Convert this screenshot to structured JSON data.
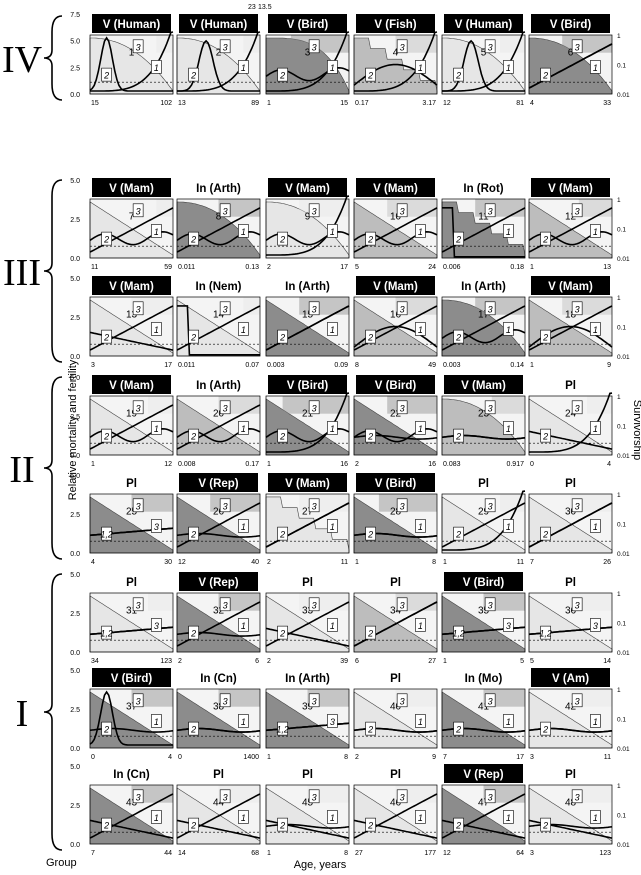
{
  "figure": {
    "group_label": "Group",
    "x_axis_label": "Age, years",
    "y_left_label": "Relative mortality and fertility",
    "y_right_label": "Survivorship",
    "left_ticks": [
      "0.0",
      "2.5",
      "5.0",
      "7.5"
    ],
    "right_ticks": [
      "1",
      "0.1",
      "0.01"
    ],
    "groups": [
      {
        "label": "IV",
        "rows": [
          0
        ]
      },
      {
        "label": "III",
        "rows": [
          1,
          2
        ]
      },
      {
        "label": "II",
        "rows": [
          3,
          4
        ]
      },
      {
        "label": "I",
        "rows": [
          5,
          6,
          7
        ]
      }
    ],
    "top_annotations": [
      "23",
      "13.5"
    ]
  },
  "chart_data": [
    {
      "type": "line",
      "panel": 1,
      "title": "V (Human)",
      "x_range": [
        "15",
        "102"
      ],
      "bg": "#e6e6e6",
      "mort": "late",
      "fert": "peak-early",
      "surv": "convex",
      "sel": 0.2
    },
    {
      "type": "line",
      "panel": 2,
      "title": "V (Human)",
      "x_range": [
        "13",
        "89"
      ],
      "bg": "#e6e6e6",
      "mort": "late",
      "fert": "peak-mid",
      "surv": "convex",
      "sel": 0.2
    },
    {
      "type": "line",
      "panel": 3,
      "title": "V (Bird)",
      "x_range": [
        "1",
        "15"
      ],
      "bg": "#8c8c8c",
      "mort": "late",
      "fert": "wavy",
      "surv": "convex-late",
      "sel": 0.7
    },
    {
      "type": "line",
      "panel": 4,
      "title": "V (Fish)",
      "x_range": [
        "0.17",
        "3.17"
      ],
      "bg": "#bdbdbd",
      "mort": "late",
      "fert": "rise-fall",
      "surv": "step",
      "sel": 0.5
    },
    {
      "type": "line",
      "panel": 5,
      "title": "V (Human)",
      "x_range": [
        "12",
        "81"
      ],
      "bg": "#e6e6e6",
      "mort": "late",
      "fert": "peak-mid",
      "surv": "convex",
      "sel": 0.3
    },
    {
      "type": "line",
      "panel": 6,
      "title": "V (Bird)",
      "x_range": [
        "4",
        "33"
      ],
      "bg": "#8c8c8c",
      "mort": "rise",
      "fert": "rise",
      "surv": "convex",
      "sel": 0.6
    },
    {
      "type": "line",
      "panel": 7,
      "title": "V (Mam)",
      "x_range": [
        "11",
        "59"
      ],
      "bg": "#e6e6e6",
      "mort": "rise",
      "fert": "wavy",
      "surv": "diagonal",
      "sel": 0.2
    },
    {
      "type": "line",
      "panel": 8,
      "title": "In (Arth)",
      "x_range": [
        "0.011",
        "0.13"
      ],
      "bg": "#8c8c8c",
      "mort": "rise",
      "fert": "wavy",
      "surv": "convex",
      "sel": 0.5
    },
    {
      "type": "line",
      "panel": 9,
      "title": "V (Mam)",
      "x_range": [
        "2",
        "17"
      ],
      "bg": "#e6e6e6",
      "mort": "late",
      "fert": "wavy",
      "surv": "convex",
      "sel": 0.6
    },
    {
      "type": "line",
      "panel": 10,
      "title": "V (Mam)",
      "x_range": [
        "5",
        "24"
      ],
      "bg": "#bdbdbd",
      "mort": "rise",
      "fert": "wavy",
      "surv": "diagonal",
      "sel": 0.6
    },
    {
      "type": "line",
      "panel": 11,
      "title": "In (Rot)",
      "x_range": [
        "0.006",
        "0.18"
      ],
      "bg": "#8c8c8c",
      "mort": "rise",
      "fert": "drop",
      "surv": "step",
      "sel": 0.6
    },
    {
      "type": "line",
      "panel": 12,
      "title": "V (Mam)",
      "x_range": [
        "1",
        "13"
      ],
      "bg": "#bdbdbd",
      "mort": "rise",
      "fert": "wavy",
      "surv": "diagonal",
      "sel": 0.4
    },
    {
      "type": "line",
      "panel": 13,
      "title": "V (Mam)",
      "x_range": [
        "3",
        "17"
      ],
      "bg": "#e6e6e6",
      "mort": "rise",
      "fert": "fall",
      "surv": "diagonal",
      "sel": 0.5
    },
    {
      "type": "line",
      "panel": 14,
      "title": "In (Nem)",
      "x_range": [
        "0.011",
        "0.07"
      ],
      "bg": "#e6e6e6",
      "mort": "rise",
      "fert": "drop",
      "surv": "diagonal",
      "sel": 0.2
    },
    {
      "type": "line",
      "panel": 15,
      "title": "In (Arth)",
      "x_range": [
        "0.003",
        "0.09"
      ],
      "bg": "#8c8c8c",
      "mort": "rise",
      "fert": "rise",
      "surv": "diagonal",
      "sel": 0.6
    },
    {
      "type": "line",
      "panel": 16,
      "title": "V (Mam)",
      "x_range": [
        "8",
        "49"
      ],
      "bg": "#bdbdbd",
      "mort": "rise",
      "fert": "rise-fall",
      "surv": "diagonal",
      "sel": 0.5
    },
    {
      "type": "line",
      "panel": 17,
      "title": "In (Arth)",
      "x_range": [
        "0.003",
        "0.14"
      ],
      "bg": "#8c8c8c",
      "mort": "rise",
      "fert": "wavy",
      "surv": "convex",
      "sel": 0.6
    },
    {
      "type": "line",
      "panel": 18,
      "title": "V (Mam)",
      "x_range": [
        "1",
        "9"
      ],
      "bg": "#bdbdbd",
      "mort": "rise",
      "fert": "rise-fall",
      "surv": "diagonal",
      "sel": 0.6
    },
    {
      "type": "line",
      "panel": 19,
      "title": "V (Mam)",
      "x_range": [
        "1",
        "12"
      ],
      "bg": "#e6e6e6",
      "mort": "rise",
      "fert": "wavy",
      "surv": "diagonal",
      "sel": 0.3
    },
    {
      "type": "line",
      "panel": 20,
      "title": "In (Arth)",
      "x_range": [
        "0.008",
        "0.17"
      ],
      "bg": "#bdbdbd",
      "mort": "rise",
      "fert": "wavy",
      "surv": "diagonal",
      "sel": 0.5
    },
    {
      "type": "line",
      "panel": 21,
      "title": "V (Bird)",
      "x_range": [
        "1",
        "16"
      ],
      "bg": "#8c8c8c",
      "mort": "late",
      "fert": "wavy",
      "surv": "diagonal",
      "sel": 0.8
    },
    {
      "type": "line",
      "panel": 22,
      "title": "V (Bird)",
      "x_range": [
        "2",
        "16"
      ],
      "bg": "#8c8c8c",
      "mort": "flat",
      "fert": "wavy",
      "surv": "diagonal",
      "sel": 0.6
    },
    {
      "type": "line",
      "panel": 23,
      "title": "V (Mam)",
      "x_range": [
        "0.083",
        "0.917"
      ],
      "bg": "#bdbdbd",
      "mort": "flat",
      "fert": "flat",
      "surv": "convex",
      "sel": 0.4
    },
    {
      "type": "line",
      "panel": 24,
      "title": "Pl",
      "x_range": [
        "0",
        "4"
      ],
      "bg": "#e6e6e6",
      "mort": "late",
      "fert": "fall",
      "surv": "diagonal",
      "sel": 0.3
    },
    {
      "type": "line",
      "panel": 25,
      "title": "Pl",
      "x_range": [
        "4",
        "30"
      ],
      "bg": "#8c8c8c",
      "mort": "same",
      "fert": "same",
      "surv": "diagonal",
      "sel": 0.5
    },
    {
      "type": "line",
      "panel": 26,
      "title": "V (Rep)",
      "x_range": [
        "12",
        "40"
      ],
      "bg": "#8c8c8c",
      "mort": "flat",
      "fert": "rise",
      "surv": "diagonal",
      "sel": 0.6
    },
    {
      "type": "line",
      "panel": 27,
      "title": "V (Mam)",
      "x_range": [
        "2",
        "11"
      ],
      "bg": "#e6e6e6",
      "mort": "rise",
      "fert": "rise",
      "surv": "step",
      "sel": 0.6
    },
    {
      "type": "line",
      "panel": 28,
      "title": "V (Bird)",
      "x_range": [
        "1",
        "8"
      ],
      "bg": "#8c8c8c",
      "mort": "flat",
      "fert": "flat",
      "surv": "diagonal",
      "sel": 0.7
    },
    {
      "type": "line",
      "panel": 29,
      "title": "Pl",
      "x_range": [
        "1",
        "11"
      ],
      "bg": "#e6e6e6",
      "mort": "late",
      "fert": "rise",
      "surv": "diagonal",
      "sel": 0.3
    },
    {
      "type": "line",
      "panel": 30,
      "title": "Pl",
      "x_range": [
        "7",
        "26"
      ],
      "bg": "#e6e6e6",
      "mort": "rise",
      "fert": "rise",
      "surv": "diagonal",
      "sel": 0.5
    },
    {
      "type": "line",
      "panel": 31,
      "title": "Pl",
      "x_range": [
        "34",
        "123"
      ],
      "bg": "#e6e6e6",
      "mort": "same",
      "fert": "same",
      "surv": "diagonal",
      "sel": 0.3
    },
    {
      "type": "line",
      "panel": 32,
      "title": "V (Rep)",
      "x_range": [
        "2",
        "6"
      ],
      "bg": "#8c8c8c",
      "mort": "flat",
      "fert": "rise",
      "surv": "diagonal",
      "sel": 0.5
    },
    {
      "type": "line",
      "panel": 33,
      "title": "Pl",
      "x_range": [
        "2",
        "39"
      ],
      "bg": "#e6e6e6",
      "mort": "fall",
      "fert": "rise",
      "surv": "diagonal",
      "sel": 0.6
    },
    {
      "type": "line",
      "panel": 34,
      "title": "Pl",
      "x_range": [
        "6",
        "27"
      ],
      "bg": "#bdbdbd",
      "mort": "rise",
      "fert": "rise",
      "surv": "diagonal",
      "sel": 0.5
    },
    {
      "type": "line",
      "panel": 35,
      "title": "V (Bird)",
      "x_range": [
        "1",
        "5"
      ],
      "bg": "#8c8c8c",
      "mort": "same",
      "fert": "same",
      "surv": "diagonal",
      "sel": 0.5
    },
    {
      "type": "line",
      "panel": 36,
      "title": "Pl",
      "x_range": [
        "5",
        "14"
      ],
      "bg": "#e6e6e6",
      "mort": "same",
      "fert": "same",
      "surv": "diagonal",
      "sel": 0.5
    },
    {
      "type": "line",
      "panel": 37,
      "title": "V (Bird)",
      "x_range": [
        "0",
        "4"
      ],
      "bg": "#8c8c8c",
      "mort": "flat",
      "fert": "peak-early",
      "surv": "diagonal",
      "sel": 0.5
    },
    {
      "type": "line",
      "panel": 38,
      "title": "In (Cn)",
      "x_range": [
        "0",
        "1400"
      ],
      "bg": "#8c8c8c",
      "mort": "flat",
      "fert": "flat",
      "surv": "diagonal",
      "sel": 0.5
    },
    {
      "type": "line",
      "panel": 39,
      "title": "In (Arth)",
      "x_range": [
        "1",
        "8"
      ],
      "bg": "#8c8c8c",
      "mort": "same",
      "fert": "same",
      "surv": "diagonal",
      "sel": 0.5
    },
    {
      "type": "line",
      "panel": 40,
      "title": "Pl",
      "x_range": [
        "2",
        "9"
      ],
      "bg": "#e6e6e6",
      "mort": "flat",
      "fert": "flat",
      "surv": "diagonal",
      "sel": 0.5
    },
    {
      "type": "line",
      "panel": 41,
      "title": "In (Mo)",
      "x_range": [
        "7",
        "17"
      ],
      "bg": "#8c8c8c",
      "mort": "flat",
      "fert": "flat",
      "surv": "diagonal",
      "sel": 0.5
    },
    {
      "type": "line",
      "panel": 42,
      "title": "V (Am)",
      "x_range": [
        "3",
        "11"
      ],
      "bg": "#e6e6e6",
      "mort": "flat",
      "fert": "flat",
      "surv": "diagonal",
      "sel": 0.5
    },
    {
      "type": "line",
      "panel": 43,
      "title": "In (Cn)",
      "x_range": [
        "7",
        "44"
      ],
      "bg": "#8c8c8c",
      "mort": "fall",
      "fert": "rise",
      "surv": "diagonal",
      "sel": 0.5
    },
    {
      "type": "line",
      "panel": 44,
      "title": "Pl",
      "x_range": [
        "14",
        "68"
      ],
      "bg": "#e6e6e6",
      "mort": "fall",
      "fert": "rise",
      "surv": "diagonal",
      "sel": 0.5
    },
    {
      "type": "line",
      "panel": 45,
      "title": "Pl",
      "x_range": [
        "1",
        "8"
      ],
      "bg": "#e6e6e6",
      "mort": "fall",
      "fert": "flat",
      "surv": "diagonal",
      "sel": 0.5
    },
    {
      "type": "line",
      "panel": 46,
      "title": "Pl",
      "x_range": [
        "27",
        "177"
      ],
      "bg": "#e6e6e6",
      "mort": "fall",
      "fert": "rise",
      "surv": "diagonal",
      "sel": 0.5
    },
    {
      "type": "line",
      "panel": 47,
      "title": "V (Rep)",
      "x_range": [
        "12",
        "64"
      ],
      "bg": "#8c8c8c",
      "mort": "fall",
      "fert": "rise",
      "surv": "diagonal",
      "sel": 0.5
    },
    {
      "type": "line",
      "panel": 48,
      "title": "Pl",
      "x_range": [
        "3",
        "123"
      ],
      "bg": "#e6e6e6",
      "mort": "fall",
      "fert": "flat",
      "surv": "diagonal",
      "sel": 0.5
    }
  ]
}
